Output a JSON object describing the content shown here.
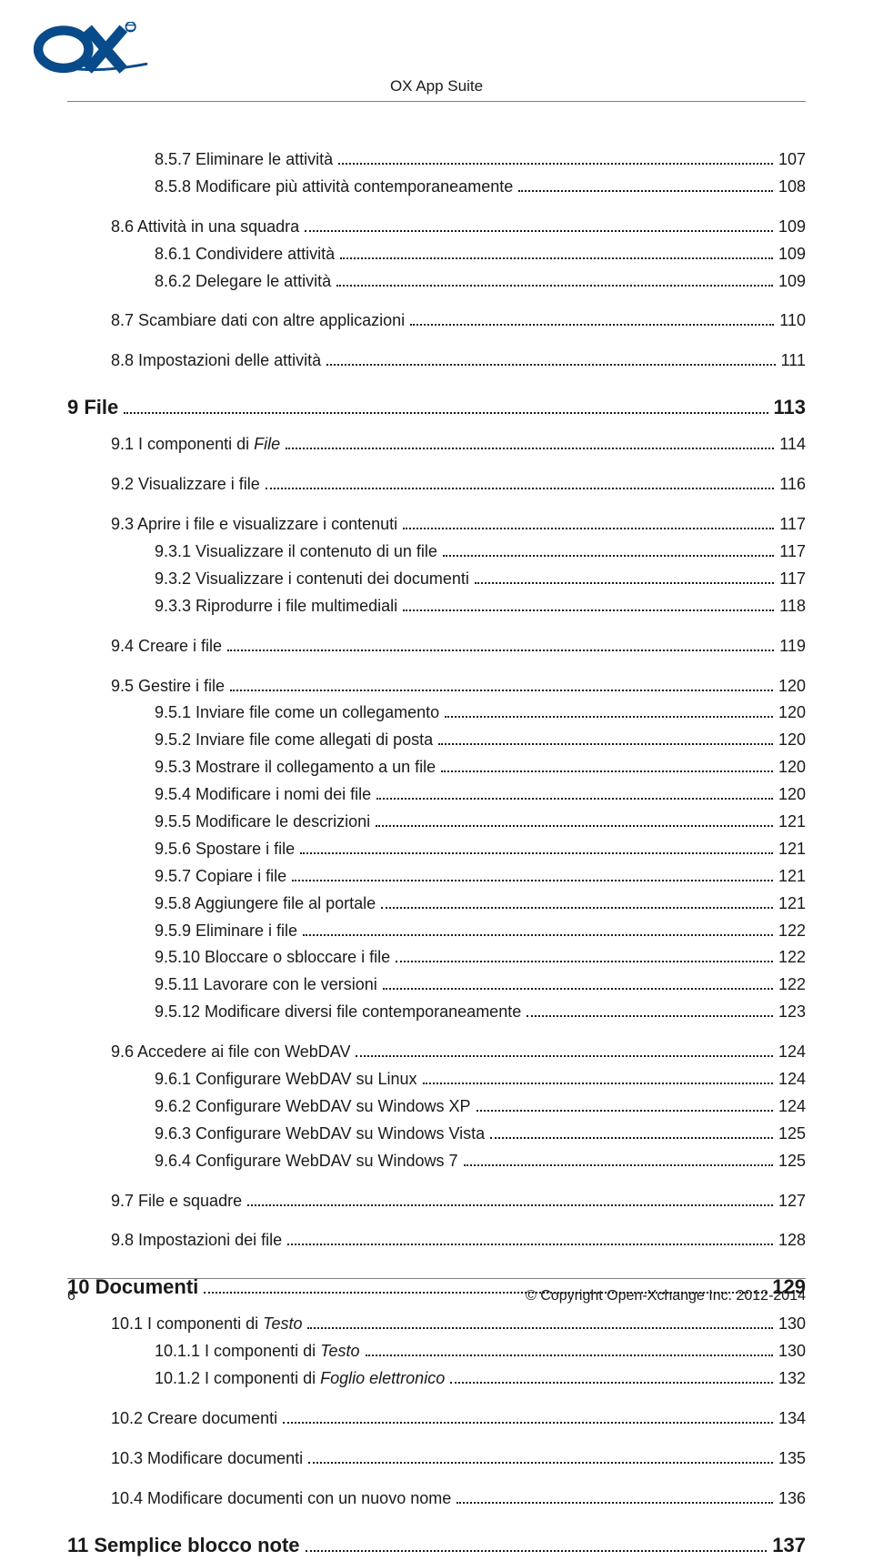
{
  "header": {
    "title": "OX App Suite"
  },
  "footer": {
    "page_number": "6",
    "copyright": "© Copyright Open-Xchange Inc. 2012-2014"
  },
  "logo": {
    "text": "OX",
    "stroke_color": "#084b8a",
    "bg_color": "#ffffff"
  },
  "toc": [
    {
      "level": "sub2",
      "label": "8.5.7 Eliminare le attività",
      "page": "107"
    },
    {
      "level": "sub2",
      "label": "8.5.8 Modificare più attività contemporaneamente",
      "page": "108"
    },
    {
      "level": "sub1",
      "group": true,
      "label": "8.6 Attività in una squadra",
      "page": "109"
    },
    {
      "level": "sub2",
      "label": "8.6.1 Condividere attività",
      "page": "109"
    },
    {
      "level": "sub2",
      "label": "8.6.2 Delegare le attività",
      "page": "109"
    },
    {
      "level": "sub1",
      "group": true,
      "label": "8.7 Scambiare dati con altre applicazioni",
      "page": "110"
    },
    {
      "level": "sub1",
      "group": true,
      "label": "8.8 Impostazioni delle attività",
      "page": "111"
    },
    {
      "level": "section",
      "label": "9 File",
      "page": "113"
    },
    {
      "level": "sub1",
      "label": "9.1 I componenti di ",
      "italic_suffix": "File",
      "page": "114"
    },
    {
      "level": "sub1",
      "group": true,
      "label": "9.2 Visualizzare i file",
      "page": "116"
    },
    {
      "level": "sub1",
      "group": true,
      "label": "9.3 Aprire i file e visualizzare i contenuti",
      "page": "117"
    },
    {
      "level": "sub2",
      "label": "9.3.1 Visualizzare il contenuto di un file",
      "page": "117"
    },
    {
      "level": "sub2",
      "label": "9.3.2 Visualizzare i contenuti dei documenti",
      "page": "117"
    },
    {
      "level": "sub2",
      "label": "9.3.3 Riprodurre i file multimediali",
      "page": "118"
    },
    {
      "level": "sub1",
      "group": true,
      "label": "9.4 Creare i file",
      "page": "119"
    },
    {
      "level": "sub1",
      "group": true,
      "label": "9.5 Gestire i file",
      "page": "120"
    },
    {
      "level": "sub2",
      "label": "9.5.1 Inviare file come un collegamento",
      "page": "120"
    },
    {
      "level": "sub2",
      "label": "9.5.2 Inviare file come allegati di posta",
      "page": "120"
    },
    {
      "level": "sub2",
      "label": "9.5.3 Mostrare il collegamento a un file",
      "page": "120"
    },
    {
      "level": "sub2",
      "label": "9.5.4 Modificare i nomi dei file",
      "page": "120"
    },
    {
      "level": "sub2",
      "label": "9.5.5 Modificare le descrizioni",
      "page": "121"
    },
    {
      "level": "sub2",
      "label": "9.5.6 Spostare i file",
      "page": "121"
    },
    {
      "level": "sub2",
      "label": "9.5.7 Copiare i file",
      "page": "121"
    },
    {
      "level": "sub2",
      "label": "9.5.8 Aggiungere file al portale",
      "page": "121"
    },
    {
      "level": "sub2",
      "label": "9.5.9 Eliminare i file",
      "page": "122"
    },
    {
      "level": "sub2",
      "label": "9.5.10 Bloccare o sbloccare i file",
      "page": "122"
    },
    {
      "level": "sub2",
      "label": "9.5.11 Lavorare con le versioni",
      "page": "122"
    },
    {
      "level": "sub2",
      "label": "9.5.12 Modificare diversi file contemporaneamente",
      "page": "123"
    },
    {
      "level": "sub1",
      "group": true,
      "label": "9.6 Accedere ai file con WebDAV",
      "page": "124"
    },
    {
      "level": "sub2",
      "label": "9.6.1 Configurare WebDAV su Linux",
      "page": "124"
    },
    {
      "level": "sub2",
      "label": "9.6.2 Configurare WebDAV su Windows XP",
      "page": "124"
    },
    {
      "level": "sub2",
      "label": "9.6.3 Configurare WebDAV su Windows Vista",
      "page": "125"
    },
    {
      "level": "sub2",
      "label": "9.6.4 Configurare WebDAV su Windows 7",
      "page": "125"
    },
    {
      "level": "sub1",
      "group": true,
      "label": "9.7 File e squadre",
      "page": "127"
    },
    {
      "level": "sub1",
      "group": true,
      "label": "9.8 Impostazioni dei file",
      "page": "128"
    },
    {
      "level": "section",
      "label": "10 Documenti",
      "page": "129"
    },
    {
      "level": "sub1",
      "label": "10.1 I componenti di ",
      "italic_suffix": "Testo",
      "page": "130"
    },
    {
      "level": "sub2",
      "label": "10.1.1 I componenti di ",
      "italic_suffix": "Testo",
      "page": "130"
    },
    {
      "level": "sub2",
      "label": "10.1.2 I componenti di ",
      "italic_suffix": "Foglio elettronico",
      "page": "132"
    },
    {
      "level": "sub1",
      "group": true,
      "label": "10.2 Creare documenti",
      "page": "134"
    },
    {
      "level": "sub1",
      "group": true,
      "label": "10.3 Modificare documenti",
      "page": "135"
    },
    {
      "level": "sub1",
      "group": true,
      "label": "10.4 Modificare documenti con un nuovo nome",
      "page": "136"
    },
    {
      "level": "section",
      "label": "11 Semplice blocco note",
      "page": "137"
    }
  ],
  "typography": {
    "base_fontsize": 18,
    "section_fontsize": 22,
    "header_fontsize": 17,
    "footer_fontsize": 16,
    "text_color": "#1a1a1a",
    "rule_color": "#808080"
  }
}
